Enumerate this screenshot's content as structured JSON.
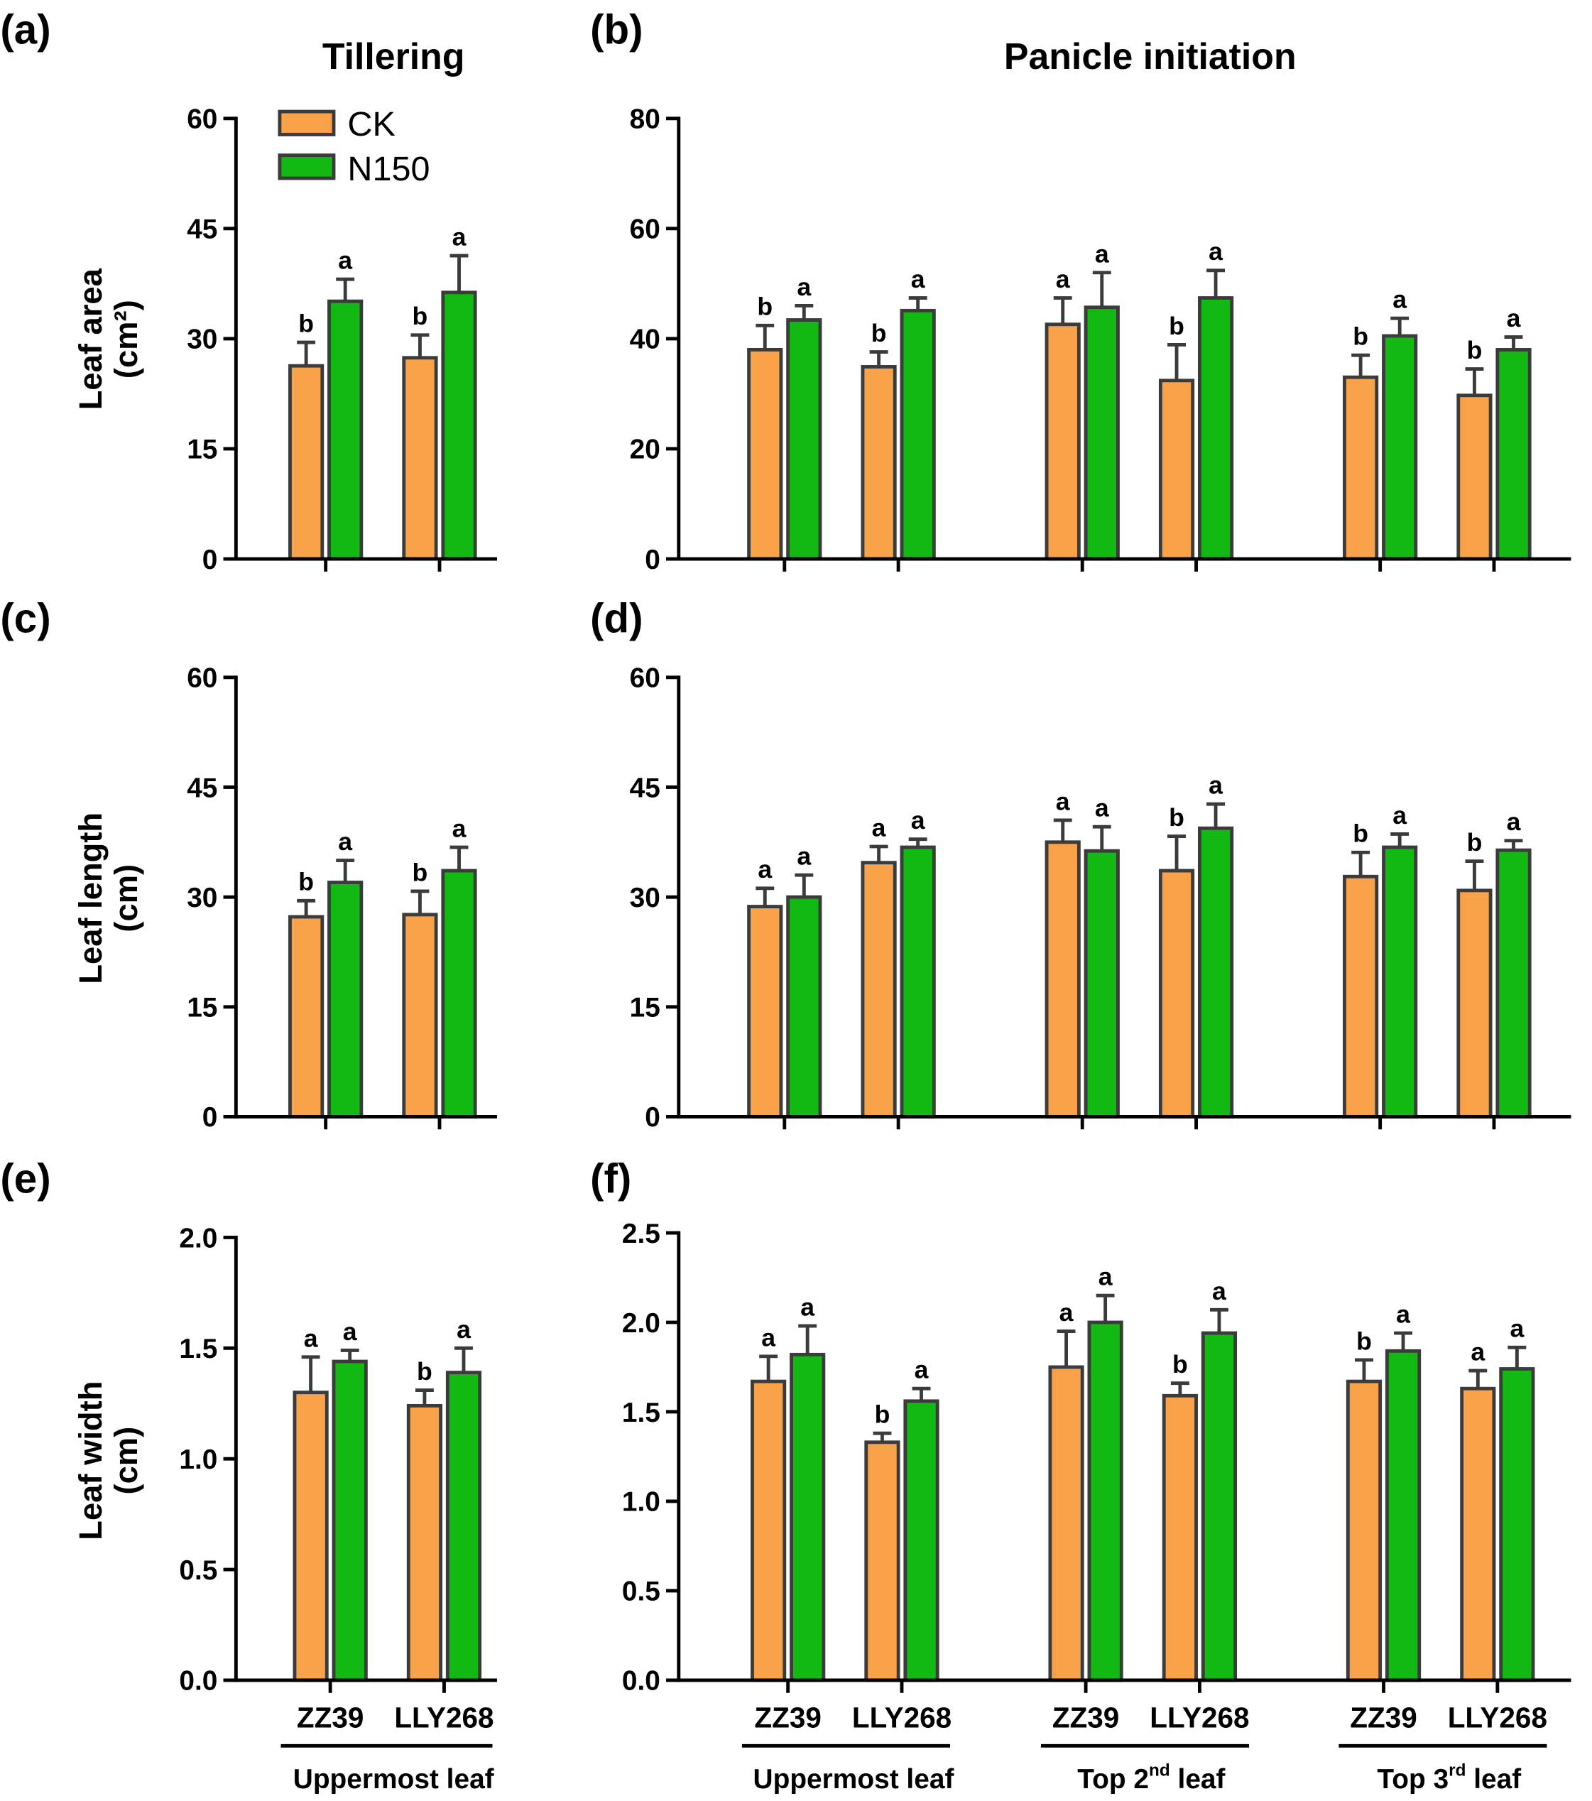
{
  "colors": {
    "outline": "#3B3B3B",
    "axis": "#000000"
  },
  "legend": [
    {
      "label": "CK",
      "color": "#F9A24A"
    },
    {
      "label": "N150",
      "color": "#12B912"
    }
  ],
  "chart_data": [
    {
      "panel_label": "(a)",
      "type": "bar",
      "title": "Tillering",
      "ylabel": [
        "Leaf area",
        "(cm²)"
      ],
      "ylim": [
        0,
        60
      ],
      "yticks": [
        "0",
        "15",
        "30",
        "45",
        "60"
      ],
      "series": {
        "CK": {
          "values": [
            26.3,
            27.4
          ],
          "errors": [
            3.2,
            3.1
          ],
          "letters": [
            "b",
            "b"
          ]
        },
        "N150": {
          "values": [
            35.1,
            36.3
          ],
          "errors": [
            3.0,
            5.0
          ],
          "letters": [
            "a",
            "a"
          ]
        }
      }
    },
    {
      "panel_label": "(b)",
      "type": "bar",
      "title": "Panicle initiation",
      "ylim": [
        0,
        80
      ],
      "yticks": [
        "0",
        "20",
        "40",
        "60",
        "80"
      ],
      "series": {
        "CK": {
          "values": [
            38.0,
            34.9,
            42.6,
            32.4,
            33.0,
            29.7
          ],
          "errors": [
            4.4,
            2.7,
            4.8,
            6.5,
            4.0,
            4.8
          ],
          "letters": [
            "b",
            "b",
            "a",
            "b",
            "b",
            "b"
          ]
        },
        "N150": {
          "values": [
            43.4,
            45.1,
            45.7,
            47.4,
            40.5,
            38.0
          ],
          "errors": [
            2.6,
            2.3,
            6.3,
            5.0,
            3.2,
            2.3
          ],
          "letters": [
            "a",
            "a",
            "a",
            "a",
            "a",
            "a"
          ]
        }
      }
    },
    {
      "panel_label": "(c)",
      "type": "bar",
      "ylabel": [
        "Leaf length",
        "(cm)"
      ],
      "ylim": [
        0,
        60
      ],
      "yticks": [
        "0",
        "15",
        "30",
        "45",
        "60"
      ],
      "series": {
        "CK": {
          "values": [
            27.3,
            27.6
          ],
          "errors": [
            2.2,
            3.2
          ],
          "letters": [
            "b",
            "b"
          ]
        },
        "N150": {
          "values": [
            32.0,
            33.6
          ],
          "errors": [
            3.0,
            3.2
          ],
          "letters": [
            "a",
            "a"
          ]
        }
      }
    },
    {
      "panel_label": "(d)",
      "type": "bar",
      "ylim": [
        0,
        60
      ],
      "yticks": [
        "0",
        "15",
        "30",
        "45",
        "60"
      ],
      "series": {
        "CK": {
          "values": [
            28.7,
            34.7,
            37.5,
            33.6,
            32.8,
            30.9
          ],
          "errors": [
            2.5,
            2.2,
            3.0,
            4.7,
            3.3,
            4.0
          ],
          "letters": [
            "a",
            "a",
            "a",
            "b",
            "b",
            "b"
          ]
        },
        "N150": {
          "values": [
            30.0,
            36.8,
            36.3,
            39.4,
            36.8,
            36.4
          ],
          "errors": [
            3.0,
            1.1,
            3.3,
            3.3,
            1.8,
            1.3
          ],
          "letters": [
            "a",
            "a",
            "a",
            "a",
            "a",
            "a"
          ]
        }
      }
    },
    {
      "panel_label": "(e)",
      "type": "bar",
      "ylabel": [
        "Leaf width",
        "(cm)"
      ],
      "ylim": [
        0,
        2.0
      ],
      "yticks": [
        "0.0",
        "0.5",
        "1.0",
        "1.5",
        "2.0"
      ],
      "categories": [
        "ZZ39",
        "LLY268"
      ],
      "groups": [
        {
          "base": "Uppermost leaf"
        }
      ],
      "series": {
        "CK": {
          "values": [
            1.3,
            1.24
          ],
          "errors": [
            0.16,
            0.07
          ],
          "letters": [
            "a",
            "b"
          ]
        },
        "N150": {
          "values": [
            1.44,
            1.39
          ],
          "errors": [
            0.05,
            0.11
          ],
          "letters": [
            "a",
            "a"
          ]
        }
      }
    },
    {
      "panel_label": "(f)",
      "type": "bar",
      "ylim": [
        0,
        2.5
      ],
      "yticks": [
        "0.0",
        "0.5",
        "1.0",
        "1.5",
        "2.0",
        "2.5"
      ],
      "categories": [
        "ZZ39",
        "LLY268",
        "ZZ39",
        "LLY268",
        "ZZ39",
        "LLY268"
      ],
      "groups": [
        {
          "base": "Uppermost leaf"
        },
        {
          "base": "Top 2",
          "sup": "nd",
          "tail": " leaf"
        },
        {
          "base": "Top 3",
          "sup": "rd",
          "tail": " leaf"
        }
      ],
      "series": {
        "CK": {
          "values": [
            1.67,
            1.33,
            1.75,
            1.59,
            1.67,
            1.63
          ],
          "errors": [
            0.14,
            0.05,
            0.2,
            0.07,
            0.12,
            0.1
          ],
          "letters": [
            "a",
            "b",
            "a",
            "b",
            "b",
            "a"
          ]
        },
        "N150": {
          "values": [
            1.82,
            1.56,
            2.0,
            1.94,
            1.84,
            1.74
          ],
          "errors": [
            0.16,
            0.07,
            0.15,
            0.13,
            0.1,
            0.12
          ],
          "letters": [
            "a",
            "a",
            "a",
            "a",
            "a",
            "a"
          ]
        }
      }
    }
  ]
}
